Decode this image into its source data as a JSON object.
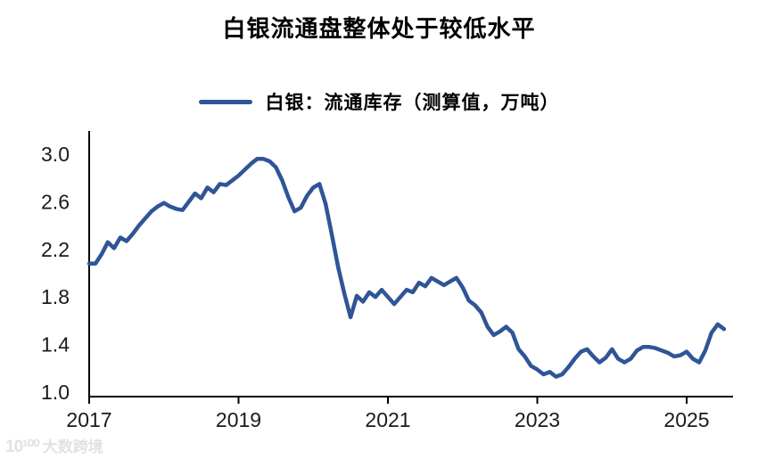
{
  "page": {
    "background": "#ffffff"
  },
  "header": {
    "title": "白银流通盘整体处于较低水平"
  },
  "watermark": {
    "logo": "10¹⁰⁰",
    "text": "大数跨境"
  },
  "chart_data": {
    "type": "line",
    "title": "白银流通盘整体处于较低水平",
    "xlabel": "",
    "ylabel": "",
    "grid": false,
    "legend_position": "top",
    "x_start_year": 2017,
    "points_per_year": 12,
    "x_ticks": [
      2017,
      2019,
      2021,
      2023,
      2025
    ],
    "y_ticks": [
      1.0,
      1.4,
      1.8,
      2.2,
      2.6,
      3.0
    ],
    "ylim": [
      1.0,
      3.0
    ],
    "xlim": [
      2017.0,
      2025.62
    ],
    "axis_color": "#000000",
    "tick_label_color": "#1a1a1a",
    "series": [
      {
        "name": "白银：流通库存（测算值，万吨）",
        "color": "#2F5597",
        "values": [
          2.08,
          2.08,
          2.16,
          2.26,
          2.21,
          2.3,
          2.27,
          2.33,
          2.4,
          2.46,
          2.52,
          2.56,
          2.59,
          2.56,
          2.54,
          2.53,
          2.6,
          2.67,
          2.63,
          2.72,
          2.68,
          2.75,
          2.74,
          2.78,
          2.82,
          2.87,
          2.92,
          2.96,
          2.96,
          2.94,
          2.89,
          2.78,
          2.64,
          2.52,
          2.55,
          2.65,
          2.72,
          2.75,
          2.58,
          2.32,
          2.05,
          1.83,
          1.63,
          1.81,
          1.76,
          1.84,
          1.8,
          1.86,
          1.8,
          1.74,
          1.8,
          1.86,
          1.84,
          1.92,
          1.89,
          1.96,
          1.93,
          1.9,
          1.93,
          1.96,
          1.88,
          1.77,
          1.73,
          1.67,
          1.55,
          1.48,
          1.51,
          1.55,
          1.5,
          1.36,
          1.3,
          1.22,
          1.19,
          1.15,
          1.17,
          1.13,
          1.15,
          1.21,
          1.28,
          1.34,
          1.36,
          1.3,
          1.25,
          1.29,
          1.36,
          1.28,
          1.25,
          1.28,
          1.35,
          1.38,
          1.38,
          1.37,
          1.35,
          1.33,
          1.3,
          1.31,
          1.34,
          1.28,
          1.25,
          1.35,
          1.5,
          1.57,
          1.53
        ]
      }
    ]
  }
}
